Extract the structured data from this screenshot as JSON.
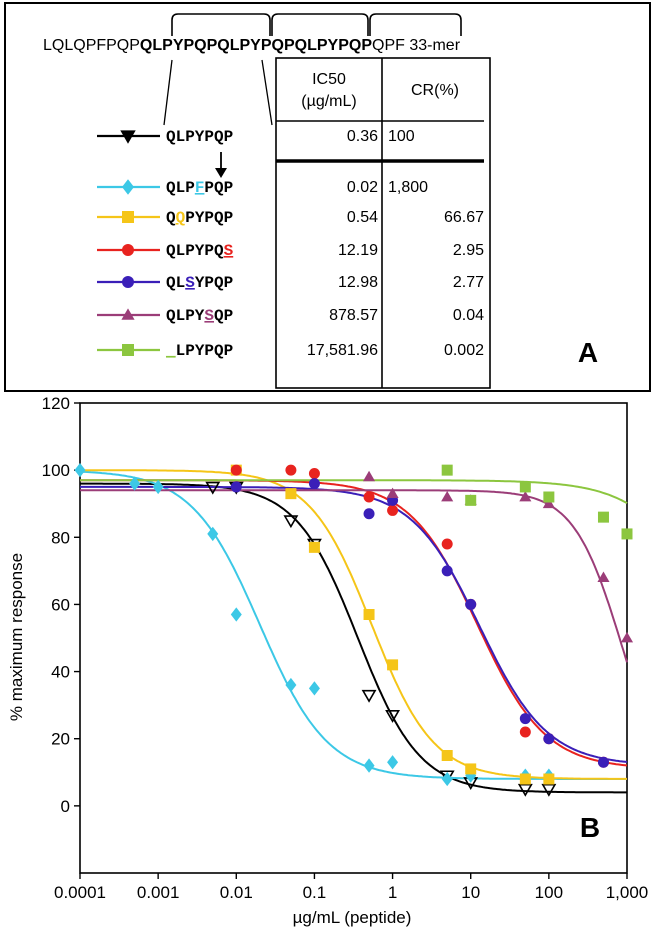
{
  "panel_a": {
    "label": "A",
    "sequence": {
      "prefix": "LQLQPFPQP",
      "repeats": [
        "QLPYPQP",
        "QLPYPQP",
        "QLPYPQP"
      ],
      "suffix": "QPF",
      "name": "33-mer"
    },
    "table": {
      "header_ic50": [
        "IC50",
        "(µg/mL)"
      ],
      "header_cr": "CR(%)",
      "rows": [
        {
          "seq": [
            {
              "t": "QLPYPQP"
            }
          ],
          "ic50": "0.36",
          "cr": "100",
          "color": "#000000",
          "marker": "triangle-down"
        },
        {
          "seq": [
            {
              "t": "QLP"
            },
            {
              "t": "F",
              "hl": true
            },
            {
              "t": "PQP"
            }
          ],
          "ic50": "0.02",
          "cr": "1,800",
          "color": "#3cc8e6",
          "marker": "diamond"
        },
        {
          "seq": [
            {
              "t": "Q"
            },
            {
              "t": "Q",
              "hl": true
            },
            {
              "t": "PYPQP"
            }
          ],
          "ic50": "0.54",
          "cr": "66.67",
          "color": "#f5c518",
          "marker": "square"
        },
        {
          "seq": [
            {
              "t": "QLPYPQ"
            },
            {
              "t": "S",
              "hl": true
            }
          ],
          "ic50": "12.19",
          "cr": "2.95",
          "color": "#e8231f",
          "marker": "circle"
        },
        {
          "seq": [
            {
              "t": "QL"
            },
            {
              "t": "S",
              "hl": true
            },
            {
              "t": "YPQP"
            }
          ],
          "ic50": "12.98",
          "cr": "2.77",
          "color": "#3a1fb8",
          "marker": "circle"
        },
        {
          "seq": [
            {
              "t": "QLPY"
            },
            {
              "t": "S",
              "hl": true
            },
            {
              "t": "QP"
            }
          ],
          "ic50": "878.57",
          "cr": "0.04",
          "color": "#9b3d78",
          "marker": "triangle-up"
        },
        {
          "seq": [
            {
              "t": "_",
              "hl": true
            },
            {
              "t": "LPYPQP"
            }
          ],
          "ic50": "17,581.96",
          "cr": "0.002",
          "color": "#8cc63f",
          "marker": "square"
        }
      ]
    }
  },
  "chart_data": {
    "type": "scatter",
    "panel_label": "B",
    "xlabel": "µg/mL (peptide)",
    "ylabel": "% maximum response",
    "x_scale": "log",
    "xlim": [
      0.0001,
      1000
    ],
    "ylim": [
      -20,
      120
    ],
    "x_ticks": [
      0.0001,
      0.001,
      0.01,
      0.1,
      1,
      10,
      100,
      1000
    ],
    "x_tick_labels": [
      "0.0001",
      "0.001",
      "0.01",
      "0.1",
      "1",
      "10",
      "100",
      "1,000"
    ],
    "y_ticks": [
      0,
      20,
      40,
      60,
      80,
      100,
      120
    ],
    "y_tick_labels": [
      "0",
      "20",
      "40",
      "60",
      "80",
      "100",
      "120"
    ],
    "grid": false,
    "series": [
      {
        "name": "QLPYPQP",
        "color": "#000000",
        "marker": "triangle-down",
        "fit": {
          "top": 96,
          "bottom": 4,
          "ic50": 0.36,
          "hill": 1.1
        },
        "points": [
          [
            0.005,
            95
          ],
          [
            0.01,
            95
          ],
          [
            0.05,
            85
          ],
          [
            0.1,
            78
          ],
          [
            0.5,
            33
          ],
          [
            1,
            27
          ],
          [
            5,
            9
          ],
          [
            10,
            7
          ],
          [
            50,
            5
          ],
          [
            100,
            5
          ]
        ]
      },
      {
        "name": "QLPFPQP",
        "color": "#3cc8e6",
        "marker": "diamond",
        "fit": {
          "top": 100,
          "bottom": 8,
          "ic50": 0.02,
          "hill": 1.0
        },
        "points": [
          [
            0.0001,
            100
          ],
          [
            0.0005,
            96
          ],
          [
            0.001,
            95
          ],
          [
            0.005,
            81
          ],
          [
            0.01,
            57
          ],
          [
            0.05,
            36
          ],
          [
            0.1,
            35
          ],
          [
            0.5,
            12
          ],
          [
            1,
            13
          ],
          [
            5,
            8
          ],
          [
            10,
            9
          ],
          [
            50,
            9
          ],
          [
            100,
            9
          ]
        ]
      },
      {
        "name": "QQPYPQP",
        "color": "#f5c518",
        "marker": "square",
        "fit": {
          "top": 100,
          "bottom": 8,
          "ic50": 0.54,
          "hill": 1.1
        },
        "points": [
          [
            0.01,
            100
          ],
          [
            0.05,
            93
          ],
          [
            0.1,
            77
          ],
          [
            0.5,
            57
          ],
          [
            1,
            42
          ],
          [
            5,
            15
          ],
          [
            10,
            11
          ],
          [
            50,
            8
          ],
          [
            100,
            8
          ]
        ]
      },
      {
        "name": "QLPYPQS",
        "color": "#e8231f",
        "marker": "circle",
        "fit": {
          "top": 97,
          "bottom": 11,
          "ic50": 12.19,
          "hill": 1.0
        },
        "points": [
          [
            0.01,
            100
          ],
          [
            0.05,
            100
          ],
          [
            0.1,
            99
          ],
          [
            0.5,
            92
          ],
          [
            1,
            88
          ],
          [
            5,
            78
          ],
          [
            10,
            60
          ],
          [
            50,
            22
          ],
          [
            100,
            20
          ],
          [
            500,
            13
          ]
        ]
      },
      {
        "name": "QLSYPQP",
        "color": "#3a1fb8",
        "marker": "circle",
        "fit": {
          "top": 95,
          "bottom": 12,
          "ic50": 12.98,
          "hill": 1.0
        },
        "points": [
          [
            0.01,
            95
          ],
          [
            0.1,
            96
          ],
          [
            0.5,
            87
          ],
          [
            1,
            91
          ],
          [
            5,
            70
          ],
          [
            10,
            60
          ],
          [
            50,
            26
          ],
          [
            100,
            20
          ],
          [
            500,
            13
          ]
        ]
      },
      {
        "name": "QLPYSQP",
        "color": "#9b3d78",
        "marker": "triangle-up",
        "fit": {
          "top": 94,
          "bottom": 0,
          "ic50": 878.57,
          "hill": 1.4
        },
        "points": [
          [
            0.5,
            98
          ],
          [
            1,
            93
          ],
          [
            5,
            92
          ],
          [
            10,
            91
          ],
          [
            50,
            92
          ],
          [
            100,
            90
          ],
          [
            500,
            68
          ],
          [
            1000,
            50
          ]
        ]
      },
      {
        "name": "LPYPQP",
        "color": "#8cc63f",
        "marker": "square",
        "fit": {
          "top": 97,
          "bottom": 0,
          "ic50": 17581.96,
          "hill": 0.9
        },
        "points": [
          [
            5,
            100
          ],
          [
            10,
            91
          ],
          [
            50,
            95
          ],
          [
            100,
            92
          ],
          [
            500,
            86
          ],
          [
            1000,
            81
          ]
        ]
      }
    ]
  }
}
